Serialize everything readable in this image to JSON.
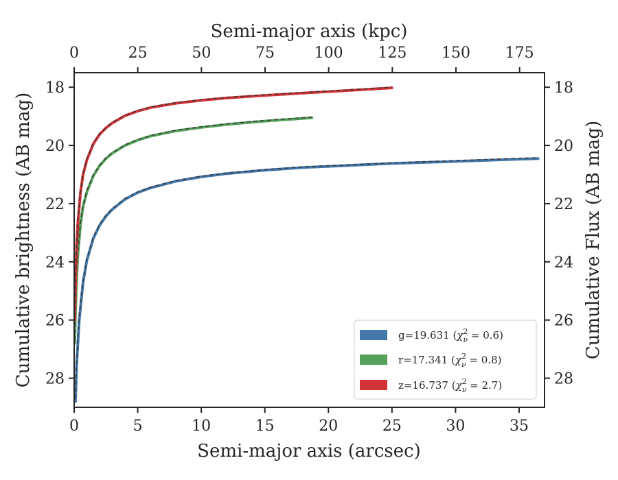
{
  "chart_data": {
    "type": "line",
    "xlabel": "Semi-major axis (arcsec)",
    "ylabel": "Cumulative brightness (AB mag)",
    "top_xlabel": "Semi-major axis (kpc)",
    "right_ylabel": "Cumulative Flux (AB mag)",
    "xlim": [
      0,
      37
    ],
    "ylim": [
      29,
      17.5
    ],
    "y_inverted": true,
    "top_xlim": [
      0,
      184.8
    ],
    "x_ticks": [
      "0",
      "5",
      "10",
      "15",
      "20",
      "25",
      "30",
      "35"
    ],
    "top_x_ticks": [
      "0",
      "25",
      "50",
      "75",
      "100",
      "125",
      "150",
      "175"
    ],
    "y_ticks": [
      "18",
      "20",
      "22",
      "24",
      "26",
      "28"
    ],
    "legend_position": "lower-right",
    "legend": [
      {
        "band": "g",
        "value": "19.631",
        "chi2": "0.6",
        "color": "#4477aa"
      },
      {
        "band": "r",
        "value": "17.341",
        "chi2": "0.8",
        "color": "#55a05a"
      },
      {
        "band": "z",
        "value": "16.737",
        "chi2": "2.7",
        "color": "#d03437"
      }
    ],
    "series": [
      {
        "color": "#4477aa",
        "x": [
          0.1,
          0.2,
          0.4,
          0.7,
          1.0,
          1.5,
          2.0,
          2.5,
          3.0,
          4.0,
          5.0,
          6.0,
          8.0,
          10.0,
          12.0,
          15.0,
          18.0,
          20.0,
          25.0,
          30.0,
          36.5
        ],
        "y": [
          28.8,
          27.5,
          26.0,
          24.7,
          23.95,
          23.2,
          22.75,
          22.43,
          22.2,
          21.85,
          21.62,
          21.46,
          21.23,
          21.08,
          20.97,
          20.85,
          20.76,
          20.72,
          20.62,
          20.55,
          20.45
        ],
        "model_y": [
          28.7,
          27.4,
          25.9,
          24.65,
          23.9,
          23.15,
          22.7,
          22.4,
          22.17,
          21.82,
          21.6,
          21.44,
          21.21,
          21.06,
          20.95,
          20.83,
          20.74,
          20.7,
          20.6,
          20.52,
          20.42
        ]
      },
      {
        "color": "#55a05a",
        "x": [
          0.05,
          0.1,
          0.2,
          0.3,
          0.5,
          0.7,
          1.0,
          1.5,
          2.0,
          2.5,
          3.0,
          4.0,
          5.0,
          6.0,
          8.0,
          10.0,
          12.0,
          14.0,
          16.0,
          18.7
        ],
        "y": [
          26.8,
          25.7,
          24.5,
          23.7,
          22.7,
          22.1,
          21.6,
          21.05,
          20.7,
          20.45,
          20.27,
          20.0,
          19.82,
          19.68,
          19.5,
          19.38,
          19.28,
          19.2,
          19.13,
          19.05
        ],
        "model_y": [
          26.7,
          25.6,
          24.4,
          23.6,
          22.65,
          22.05,
          21.55,
          21.02,
          20.68,
          20.43,
          20.25,
          19.98,
          19.8,
          19.66,
          19.48,
          19.36,
          19.26,
          19.18,
          19.11,
          19.03
        ]
      },
      {
        "color": "#d03437",
        "x": [
          0.05,
          0.1,
          0.2,
          0.3,
          0.5,
          0.7,
          1.0,
          1.5,
          2.0,
          2.5,
          3.0,
          4.0,
          5.0,
          6.0,
          8.0,
          10.0,
          12.0,
          15.0,
          18.0,
          20.0,
          22.0,
          25.0
        ],
        "y": [
          26.0,
          24.7,
          23.4,
          22.6,
          21.6,
          21.0,
          20.5,
          19.95,
          19.62,
          19.4,
          19.23,
          18.98,
          18.82,
          18.7,
          18.55,
          18.45,
          18.37,
          18.28,
          18.2,
          18.15,
          18.1,
          18.02
        ],
        "model_y": [
          25.9,
          24.6,
          23.3,
          22.55,
          21.55,
          20.97,
          20.47,
          19.93,
          19.6,
          19.38,
          19.21,
          18.96,
          18.8,
          18.68,
          18.53,
          18.43,
          18.35,
          18.26,
          18.18,
          18.13,
          18.08,
          18.0
        ]
      }
    ]
  }
}
